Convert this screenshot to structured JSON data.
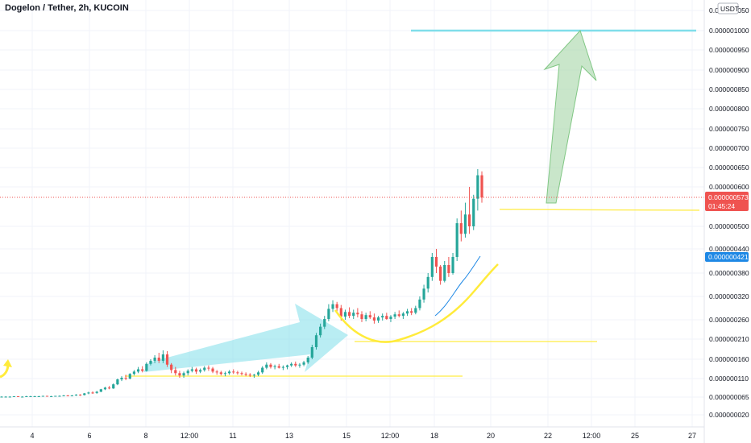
{
  "header": {
    "title": "Dogelon / Tether, 2h, KUCOIN"
  },
  "colors": {
    "up": "#26a69a",
    "down": "#ef5350",
    "target": "#80deea",
    "support": "#ffeb3b",
    "curve": "#ffeb3b",
    "arrow_green": "#a5d6a7",
    "arrow_blue": "#80deea",
    "ma": "#1e88e5",
    "price_tag": "#ef5350",
    "ma_tag": "#1e88e5"
  },
  "chart_data": {
    "type": "candlestick",
    "title": "Dogelon / Tether, 2h, KUCOIN",
    "currency_label": "USDT",
    "y_ticks": [
      {
        "label": "0.000001050",
        "value": 1050
      },
      {
        "label": "0.000001000",
        "value": 1000
      },
      {
        "label": "0.000000950",
        "value": 950
      },
      {
        "label": "0.000000900",
        "value": 900
      },
      {
        "label": "0.000000850",
        "value": 850
      },
      {
        "label": "0.000000800",
        "value": 800
      },
      {
        "label": "0.000000750",
        "value": 750
      },
      {
        "label": "0.000000700",
        "value": 700
      },
      {
        "label": "0.000000650",
        "value": 650
      },
      {
        "label": "0.000000600",
        "value": 600
      },
      {
        "label": "0.000000500",
        "value": 500
      },
      {
        "label": "0.000000440",
        "value": 440
      },
      {
        "label": "0.000000380",
        "value": 380
      },
      {
        "label": "0.000000320",
        "value": 320
      },
      {
        "label": "0.000000260",
        "value": 260
      },
      {
        "label": "0.000000210",
        "value": 210
      },
      {
        "label": "0.000000160",
        "value": 160
      },
      {
        "label": "0.000000110",
        "value": 110
      },
      {
        "label": "0.000000065",
        "value": 65
      },
      {
        "label": "0.000000020",
        "value": 20
      }
    ],
    "x_ticks": [
      "4",
      "6",
      "8",
      "12:00",
      "11",
      "13",
      "15",
      "12:00",
      "18",
      "20",
      "22",
      "12:00",
      "25",
      "27"
    ],
    "last_price": {
      "label": "0.000000573",
      "countdown": "01:45:24"
    },
    "ma_price": {
      "label": "0.000000421"
    },
    "candles": [
      [
        66,
        67,
        65,
        66
      ],
      [
        66,
        67,
        65,
        66
      ],
      [
        66,
        67,
        65,
        66
      ],
      [
        66,
        67,
        65,
        67
      ],
      [
        67,
        67,
        65,
        66
      ],
      [
        66,
        67,
        65,
        66
      ],
      [
        66,
        68,
        65,
        67
      ],
      [
        67,
        68,
        66,
        67
      ],
      [
        67,
        68,
        66,
        67
      ],
      [
        67,
        68,
        66,
        67
      ],
      [
        67,
        68,
        66,
        68
      ],
      [
        68,
        68,
        66,
        67
      ],
      [
        67,
        68,
        66,
        67
      ],
      [
        67,
        68,
        66,
        68
      ],
      [
        68,
        69,
        67,
        68
      ],
      [
        68,
        70,
        67,
        69
      ],
      [
        69,
        70,
        67,
        68
      ],
      [
        68,
        70,
        67,
        69
      ],
      [
        69,
        72,
        68,
        71
      ],
      [
        71,
        72,
        68,
        70
      ],
      [
        70,
        75,
        69,
        74
      ],
      [
        74,
        78,
        72,
        76
      ],
      [
        76,
        79,
        73,
        75
      ],
      [
        75,
        80,
        73,
        78
      ],
      [
        78,
        85,
        77,
        84
      ],
      [
        84,
        90,
        82,
        88
      ],
      [
        88,
        92,
        84,
        86
      ],
      [
        86,
        98,
        85,
        96
      ],
      [
        96,
        110,
        94,
        108
      ],
      [
        108,
        116,
        104,
        112
      ],
      [
        112,
        120,
        106,
        110
      ],
      [
        110,
        124,
        108,
        122
      ],
      [
        122,
        132,
        118,
        128
      ],
      [
        128,
        140,
        124,
        134
      ],
      [
        134,
        142,
        126,
        130
      ],
      [
        130,
        152,
        128,
        148
      ],
      [
        148,
        160,
        144,
        156
      ],
      [
        156,
        170,
        150,
        164
      ],
      [
        164,
        176,
        150,
        156
      ],
      [
        156,
        182,
        150,
        172
      ],
      [
        172,
        180,
        140,
        146
      ],
      [
        146,
        150,
        124,
        132
      ],
      [
        132,
        140,
        118,
        124
      ],
      [
        124,
        130,
        112,
        118
      ],
      [
        118,
        128,
        112,
        124
      ],
      [
        124,
        134,
        118,
        130
      ],
      [
        130,
        140,
        126,
        134
      ],
      [
        134,
        138,
        122,
        128
      ],
      [
        128,
        136,
        124,
        132
      ],
      [
        132,
        142,
        128,
        138
      ],
      [
        138,
        144,
        130,
        136
      ],
      [
        136,
        140,
        124,
        128
      ],
      [
        128,
        132,
        120,
        126
      ],
      [
        126,
        130,
        118,
        122
      ],
      [
        122,
        128,
        116,
        124
      ],
      [
        124,
        132,
        120,
        128
      ],
      [
        128,
        134,
        122,
        126
      ],
      [
        126,
        130,
        120,
        124
      ],
      [
        124,
        128,
        118,
        122
      ],
      [
        122,
        126,
        116,
        120
      ],
      [
        120,
        124,
        114,
        118
      ],
      [
        118,
        122,
        112,
        120
      ],
      [
        120,
        130,
        116,
        126
      ],
      [
        126,
        142,
        122,
        138
      ],
      [
        138,
        152,
        134,
        146
      ],
      [
        146,
        150,
        136,
        140
      ],
      [
        140,
        146,
        134,
        142
      ],
      [
        142,
        148,
        136,
        138
      ],
      [
        138,
        144,
        132,
        140
      ],
      [
        140,
        146,
        134,
        144
      ],
      [
        144,
        152,
        140,
        148
      ],
      [
        148,
        154,
        140,
        144
      ],
      [
        144,
        150,
        138,
        146
      ],
      [
        146,
        156,
        142,
        152
      ],
      [
        152,
        168,
        148,
        164
      ],
      [
        164,
        196,
        160,
        190
      ],
      [
        190,
        226,
        184,
        220
      ],
      [
        220,
        250,
        214,
        242
      ],
      [
        242,
        270,
        236,
        262
      ],
      [
        262,
        300,
        256,
        288
      ],
      [
        288,
        310,
        280,
        300
      ],
      [
        300,
        306,
        280,
        290
      ],
      [
        290,
        298,
        258,
        268
      ],
      [
        268,
        286,
        260,
        280
      ],
      [
        280,
        292,
        264,
        270
      ],
      [
        270,
        286,
        262,
        278
      ],
      [
        278,
        290,
        266,
        274
      ],
      [
        274,
        282,
        254,
        262
      ],
      [
        262,
        278,
        256,
        272
      ],
      [
        272,
        282,
        262,
        266
      ],
      [
        266,
        276,
        250,
        258
      ],
      [
        258,
        270,
        252,
        266
      ],
      [
        266,
        276,
        258,
        270
      ],
      [
        270,
        278,
        260,
        262
      ],
      [
        262,
        272,
        254,
        268
      ],
      [
        268,
        280,
        262,
        274
      ],
      [
        274,
        284,
        266,
        270
      ],
      [
        270,
        280,
        262,
        276
      ],
      [
        276,
        288,
        270,
        282
      ],
      [
        282,
        290,
        272,
        278
      ],
      [
        278,
        296,
        274,
        290
      ],
      [
        290,
        320,
        284,
        312
      ],
      [
        312,
        350,
        304,
        340
      ],
      [
        340,
        380,
        330,
        370
      ],
      [
        370,
        430,
        360,
        420
      ],
      [
        420,
        440,
        380,
        396
      ],
      [
        396,
        400,
        350,
        360
      ],
      [
        360,
        410,
        356,
        400
      ],
      [
        400,
        420,
        370,
        380
      ],
      [
        380,
        430,
        376,
        420
      ],
      [
        420,
        520,
        410,
        508
      ],
      [
        508,
        540,
        460,
        480
      ],
      [
        480,
        560,
        470,
        530
      ],
      [
        530,
        600,
        480,
        500
      ],
      [
        500,
        580,
        490,
        570
      ],
      [
        570,
        646,
        540,
        630
      ],
      [
        630,
        640,
        560,
        573
      ]
    ],
    "annotations": {
      "target_line": {
        "label": "",
        "value": 1000
      },
      "support_lines": [
        110,
        210,
        545
      ]
    }
  }
}
